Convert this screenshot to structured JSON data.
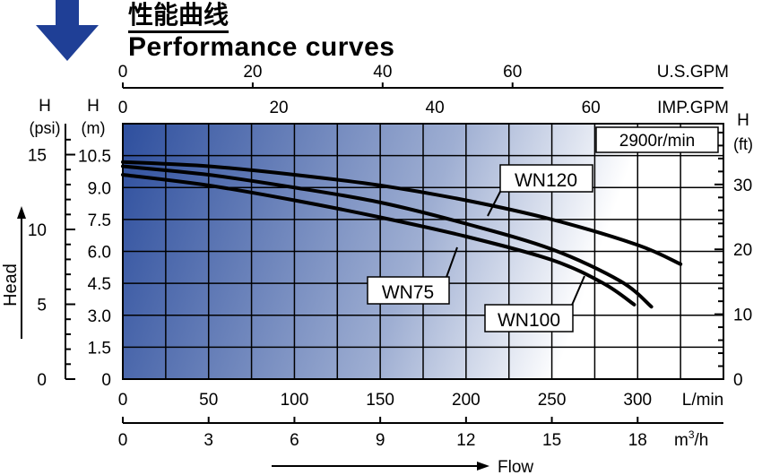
{
  "header": {
    "title_cn": "性能曲线",
    "title_en": "Performance curves",
    "arrow_icon": "arrow-down-icon",
    "arrow_color": "#1f3f96"
  },
  "chart_data": {
    "type": "line",
    "title": "Performance curves",
    "speed_label": "2900r/min",
    "background_gradient": [
      "#2e4f9e",
      "#ffffff"
    ],
    "x_axes": {
      "lmin": {
        "label": "L/min",
        "ticks": [
          "0",
          "50",
          "100",
          "150",
          "200",
          "250",
          "300"
        ],
        "range": [
          0,
          350
        ]
      },
      "m3h": {
        "label_main": "m",
        "label_sup": "3",
        "label_tail": "/h",
        "ticks": [
          "0",
          "3",
          "6",
          "9",
          "12",
          "15",
          "18"
        ],
        "range": [
          0,
          21
        ]
      },
      "us_gpm": {
        "label": "U.S.GPM",
        "ticks": [
          "0",
          "20",
          "40",
          "60"
        ]
      },
      "imp_gpm": {
        "label": "IMP.GPM",
        "ticks": [
          "0",
          "20",
          "40",
          "60"
        ]
      }
    },
    "y_axes": {
      "m": {
        "label": "H",
        "unit": "(m)",
        "ticks": [
          "0",
          "1.5",
          "3.0",
          "4.5",
          "6.0",
          "7.5",
          "9.0",
          "10.5"
        ],
        "range": [
          0,
          12
        ]
      },
      "psi": {
        "label": "H",
        "unit": "(psi)",
        "ticks": [
          "0",
          "5",
          "10",
          "15"
        ]
      },
      "ft": {
        "label": "H",
        "unit": "(ft)",
        "ticks": [
          "0",
          "10",
          "20",
          "30"
        ]
      }
    },
    "head_label": "Head",
    "flow_label": "Flow",
    "series": [
      {
        "name": "WN120",
        "x": [
          0,
          50,
          100,
          150,
          200,
          250,
          300,
          325
        ],
        "y": [
          10.2,
          10.0,
          9.6,
          9.1,
          8.4,
          7.5,
          6.3,
          5.4
        ]
      },
      {
        "name": "WN100",
        "x": [
          0,
          50,
          100,
          150,
          200,
          250,
          290,
          308
        ],
        "y": [
          10.0,
          9.6,
          9.0,
          8.3,
          7.3,
          6.1,
          4.6,
          3.4
        ]
      },
      {
        "name": "WN75",
        "x": [
          0,
          50,
          100,
          150,
          200,
          250,
          280,
          298
        ],
        "y": [
          9.6,
          9.1,
          8.4,
          7.6,
          6.7,
          5.6,
          4.5,
          3.5
        ]
      }
    ],
    "grid": true
  }
}
